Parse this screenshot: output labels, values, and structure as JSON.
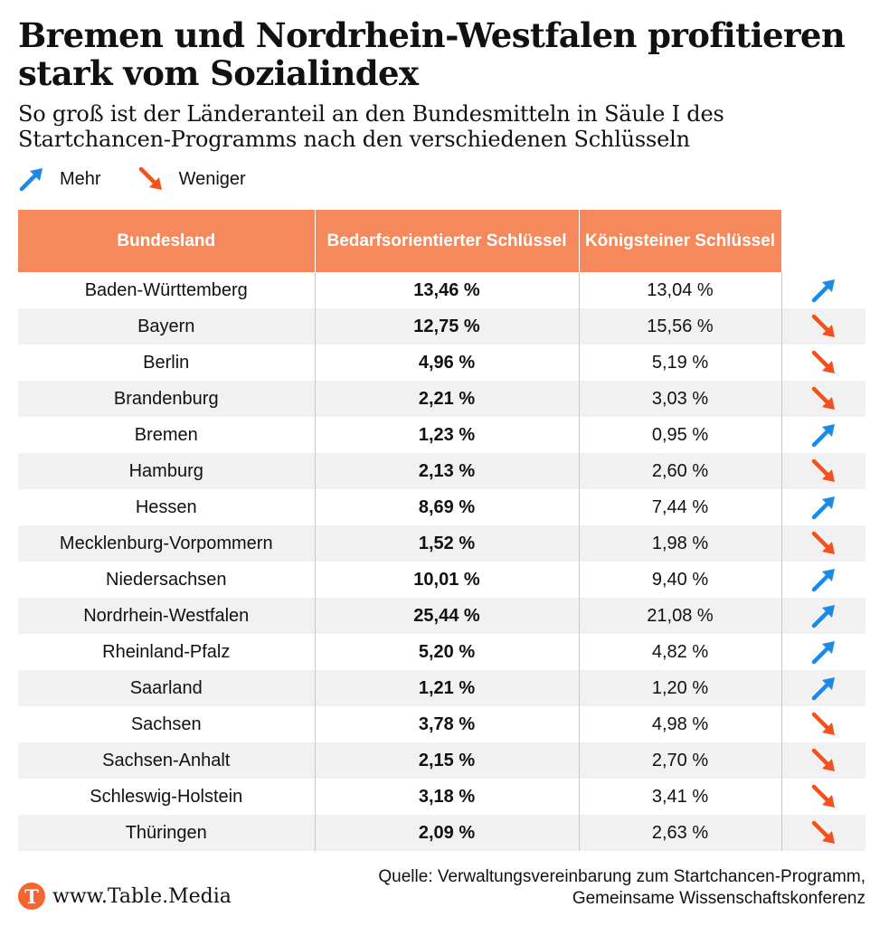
{
  "title": "Bremen und Nordrhein-Westfalen profitieren stark vom Sozialindex",
  "subtitle": "So groß ist der Länderanteil an den Bundesmitteln in Säule I des Startchancen-Programms nach den verschiedenen Schlüsseln",
  "legend": {
    "more_label": "Mehr",
    "less_label": "Weniger"
  },
  "colors": {
    "header_bg": "#f5895b",
    "arrow_up": "#1e88e5",
    "arrow_down": "#f4511e",
    "row_alt": "#f1f1f1",
    "logo": "#f4662f"
  },
  "icons": {
    "up": "arrow-up-right-icon",
    "down": "arrow-down-right-icon",
    "logo": "table-media-logo-icon"
  },
  "chart_data": {
    "type": "table",
    "columns": [
      "Bundesland",
      "Bedarfsorientierter Schlüssel",
      "Königsteiner Schlüssel"
    ],
    "rows": [
      {
        "state": "Baden-Württemberg",
        "bedarf": "13,46 %",
        "koenig": "13,04 %",
        "trend": "up"
      },
      {
        "state": "Bayern",
        "bedarf": "12,75 %",
        "koenig": "15,56 %",
        "trend": "down"
      },
      {
        "state": "Berlin",
        "bedarf": "4,96 %",
        "koenig": "5,19 %",
        "trend": "down"
      },
      {
        "state": "Brandenburg",
        "bedarf": "2,21 %",
        "koenig": "3,03 %",
        "trend": "down"
      },
      {
        "state": "Bremen",
        "bedarf": "1,23 %",
        "koenig": "0,95 %",
        "trend": "up"
      },
      {
        "state": "Hamburg",
        "bedarf": "2,13 %",
        "koenig": "2,60 %",
        "trend": "down"
      },
      {
        "state": "Hessen",
        "bedarf": "8,69 %",
        "koenig": "7,44 %",
        "trend": "up"
      },
      {
        "state": "Mecklenburg-Vorpommern",
        "bedarf": "1,52 %",
        "koenig": "1,98 %",
        "trend": "down"
      },
      {
        "state": "Niedersachsen",
        "bedarf": "10,01 %",
        "koenig": "9,40 %",
        "trend": "up"
      },
      {
        "state": "Nordrhein-Westfalen",
        "bedarf": "25,44 %",
        "koenig": "21,08 %",
        "trend": "up"
      },
      {
        "state": "Rheinland-Pfalz",
        "bedarf": "5,20 %",
        "koenig": "4,82 %",
        "trend": "up"
      },
      {
        "state": "Saarland",
        "bedarf": "1,21 %",
        "koenig": "1,20 %",
        "trend": "up"
      },
      {
        "state": "Sachsen",
        "bedarf": "3,78 %",
        "koenig": "4,98 %",
        "trend": "down"
      },
      {
        "state": "Sachsen-Anhalt",
        "bedarf": "2,15 %",
        "koenig": "2,70 %",
        "trend": "down"
      },
      {
        "state": "Schleswig-Holstein",
        "bedarf": "3,18 %",
        "koenig": "3,41 %",
        "trend": "down"
      },
      {
        "state": "Thüringen",
        "bedarf": "2,09 %",
        "koenig": "2,63 %",
        "trend": "down"
      }
    ]
  },
  "footer": {
    "logo_letter": "T",
    "url": "www.Table.Media",
    "source": "Quelle: Verwaltungsvereinbarung zum Startchancen-Programm, Gemeinsame Wissenschaftskonferenz"
  }
}
